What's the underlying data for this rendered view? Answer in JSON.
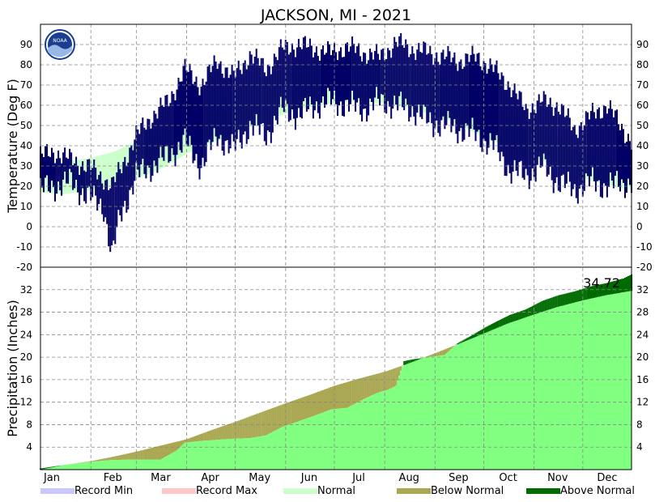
{
  "title": "JACKSON, MI - 2021",
  "logo_text": "NOAA",
  "colors": {
    "record_min": "#c8c8ff",
    "record_max": "#ffc8c8",
    "normal_band": "#ccffcc",
    "temp_bars": "#000066",
    "normal_precip": "#80ff80",
    "below_normal": "#aaa852",
    "above_normal": "#006b00"
  },
  "months": [
    "Jan",
    "Feb",
    "Mar",
    "Apr",
    "May",
    "Jun",
    "Jul",
    "Aug",
    "Sep",
    "Oct",
    "Nov",
    "Dec"
  ],
  "legend": [
    {
      "label": "Record Min",
      "color": "#c8c8ff"
    },
    {
      "label": "Record Max",
      "color": "#ffc8c8"
    },
    {
      "label": "Normal",
      "color": "#ccffcc"
    },
    {
      "label": "Below Normal",
      "color": "#aaa852"
    },
    {
      "label": "Above Normal",
      "color": "#006b00"
    }
  ],
  "chart_data": [
    {
      "type": "bar",
      "name": "temperature",
      "ylabel": "Temperature (Deg F)",
      "ylim": [
        -20,
        100
      ],
      "yticks": [
        -20,
        -10,
        0,
        10,
        20,
        30,
        40,
        50,
        60,
        70,
        80,
        90
      ],
      "grid": true,
      "normal_range": {
        "x_day": [
          1,
          15,
          32,
          46,
          60,
          74,
          91,
          105,
          121,
          135,
          152,
          166,
          182,
          196,
          213,
          227,
          244,
          258,
          274,
          288,
          305,
          319,
          335,
          349,
          365
        ],
        "high": [
          32,
          32,
          34,
          37,
          42,
          47,
          56,
          62,
          68,
          73,
          78,
          80,
          82,
          83,
          82,
          80,
          76,
          72,
          64,
          58,
          50,
          44,
          37,
          34,
          32
        ],
        "low": [
          17,
          16,
          18,
          20,
          24,
          28,
          36,
          41,
          46,
          51,
          56,
          59,
          61,
          62,
          61,
          59,
          55,
          51,
          44,
          40,
          34,
          30,
          24,
          21,
          18
        ]
      },
      "observed_daily_range": {
        "x_day": [
          1,
          10,
          20,
          30,
          40,
          45,
          50,
          60,
          70,
          80,
          90,
          100,
          110,
          120,
          130,
          140,
          150,
          160,
          170,
          180,
          190,
          200,
          210,
          220,
          230,
          240,
          250,
          260,
          270,
          280,
          290,
          300,
          310,
          320,
          330,
          340,
          350,
          365
        ],
        "high": [
          35,
          37,
          33,
          30,
          24,
          20,
          28,
          45,
          55,
          62,
          78,
          70,
          82,
          74,
          85,
          78,
          88,
          90,
          88,
          86,
          89,
          86,
          84,
          91,
          88,
          86,
          84,
          82,
          84,
          78,
          70,
          58,
          62,
          60,
          48,
          55,
          60,
          42
        ],
        "low": [
          18,
          20,
          22,
          15,
          10,
          -15,
          5,
          25,
          30,
          35,
          42,
          30,
          45,
          38,
          50,
          45,
          58,
          55,
          60,
          62,
          60,
          58,
          62,
          60,
          58,
          52,
          50,
          48,
          45,
          40,
          28,
          25,
          30,
          22,
          18,
          22,
          20,
          22
        ]
      }
    },
    {
      "type": "area",
      "name": "precipitation",
      "ylabel": "Precipitation (Inches)",
      "ylim": [
        0,
        36
      ],
      "yticks": [
        4,
        8,
        12,
        16,
        20,
        24,
        28,
        32
      ],
      "grid": true,
      "annotation": "34.72",
      "normal_cumulative": {
        "x_day": [
          1,
          15,
          32,
          46,
          60,
          74,
          91,
          105,
          121,
          135,
          152,
          166,
          182,
          196,
          213,
          227,
          244,
          258,
          274,
          288,
          305,
          319,
          335,
          349,
          365
        ],
        "y": [
          0.0,
          0.8,
          1.5,
          2.3,
          3.2,
          4.2,
          5.4,
          6.9,
          8.5,
          10.0,
          11.8,
          13.2,
          14.9,
          16.1,
          17.4,
          18.8,
          20.7,
          22.3,
          24.2,
          25.9,
          27.6,
          28.9,
          30.1,
          31.0,
          31.8
        ]
      },
      "observed_cumulative": {
        "x_day": [
          1,
          10,
          20,
          32,
          45,
          60,
          75,
          85,
          90,
          100,
          110,
          120,
          130,
          140,
          150,
          160,
          170,
          180,
          190,
          200,
          205,
          210,
          215,
          220,
          225,
          230,
          240,
          250,
          255,
          258,
          265,
          275,
          283,
          290,
          300,
          310,
          320,
          330,
          340,
          350,
          360,
          365
        ],
        "y": [
          0.2,
          0.6,
          1.0,
          1.4,
          1.7,
          1.8,
          1.8,
          3.4,
          4.8,
          5.1,
          5.3,
          5.5,
          5.6,
          6.1,
          7.6,
          8.6,
          9.6,
          10.7,
          11.0,
          12.5,
          13.2,
          13.8,
          14.2,
          14.9,
          19.3,
          19.6,
          20.0,
          20.4,
          21.7,
          22.5,
          23.6,
          25.3,
          26.5,
          27.5,
          28.5,
          30.0,
          31.0,
          31.7,
          32.6,
          33.2,
          34.0,
          34.72
        ]
      }
    }
  ]
}
